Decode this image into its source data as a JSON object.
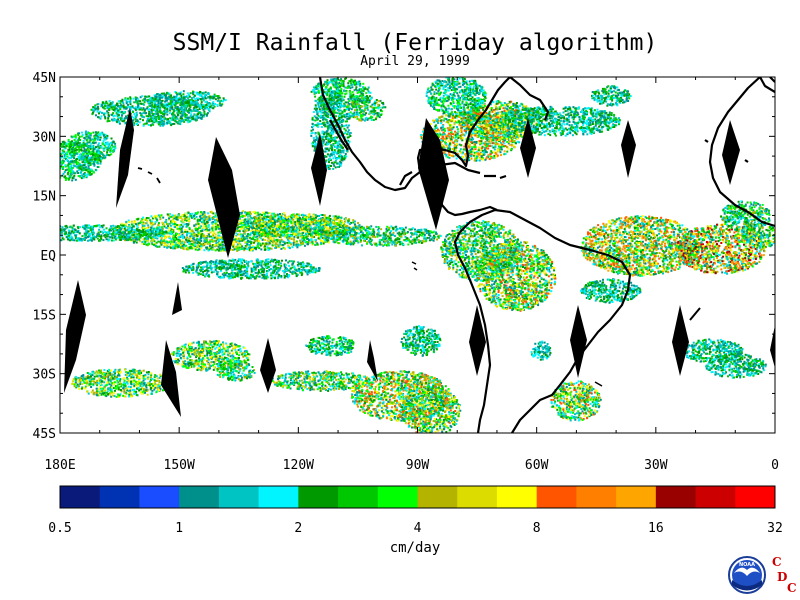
{
  "title": "SSM/I Rainfall (Ferriday algorithm)",
  "subtitle": "April 29, 1999",
  "map": {
    "lat_ticks": [
      "45N",
      "30N",
      "15N",
      "EQ",
      "15S",
      "30S",
      "45S"
    ],
    "lon_ticks": [
      "180E",
      "150W",
      "120W",
      "90W",
      "60W",
      "30W",
      "0"
    ]
  },
  "colorbar": {
    "unit": "cm/day",
    "tick_labels": [
      "0.5",
      "1",
      "2",
      "4",
      "8",
      "16",
      "32"
    ],
    "colors": [
      "#0a1a7a",
      "#0033b3",
      "#1a4dff",
      "#00908c",
      "#00c4c4",
      "#00f5ff",
      "#009900",
      "#00c800",
      "#00ff00",
      "#b4b400",
      "#dcdc00",
      "#ffff00",
      "#ff5500",
      "#ff7f00",
      "#ffa500",
      "#990000",
      "#cc0000",
      "#ff0000"
    ]
  },
  "logo": {
    "agency_text": "NOAA",
    "letters": [
      "C",
      "D",
      "C"
    ],
    "letter_color": "#cc0000"
  }
}
